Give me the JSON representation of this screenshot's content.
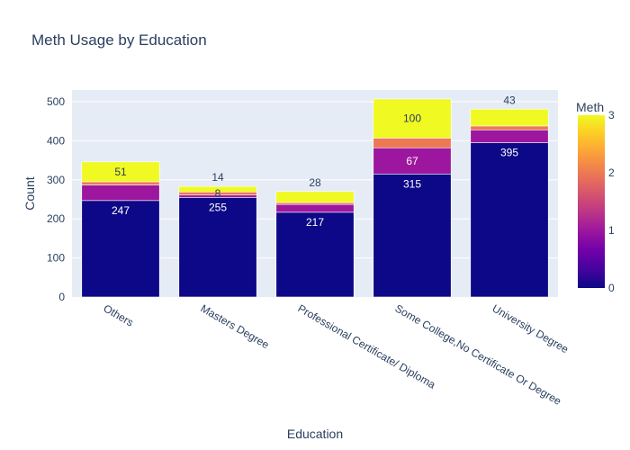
{
  "chart_data": {
    "type": "bar",
    "title": "Meth Usage by Education",
    "xlabel": "Education",
    "ylabel": "Count",
    "categories": [
      "Others",
      "Masters Degree",
      "Professional Certificate/ Diploma",
      "Some College,No Certificate Or Degree",
      "University Degree"
    ],
    "ylim": [
      0,
      530
    ],
    "yticks": [
      0,
      100,
      200,
      300,
      400,
      500
    ],
    "stacked": true,
    "grid": true,
    "series": [
      {
        "meth": 0,
        "color": "#0d0887",
        "values": [
          247,
          255,
          217,
          315,
          395
        ],
        "labels": [
          "247",
          "255",
          "217",
          "315",
          "395"
        ],
        "label_color": "#ffffff"
      },
      {
        "meth": 1,
        "color": "#9c179e",
        "values": [
          40,
          6,
          20,
          67,
          33
        ],
        "labels": [
          "",
          "",
          "",
          "67",
          ""
        ],
        "label_color": "#ffffff"
      },
      {
        "meth": 2,
        "color": "#ed7953",
        "values": [
          8,
          8,
          5,
          25,
          10
        ],
        "labels": [
          "",
          "8",
          "",
          "",
          ""
        ],
        "label_color": "#2a3f5f"
      },
      {
        "meth": 3,
        "color": "#f0f921",
        "values": [
          51,
          14,
          28,
          100,
          43
        ],
        "labels": [
          "51",
          "14",
          "28",
          "100",
          "43"
        ],
        "label_color": "#2a3f5f"
      }
    ],
    "colorbar": {
      "title": "Meth",
      "min": 0,
      "max": 3,
      "ticks": [
        "0",
        "1",
        "2",
        "3"
      ],
      "stops": [
        "#0d0887",
        "#46039f",
        "#7201a8",
        "#9c179e",
        "#bd3786",
        "#d8576b",
        "#ed7953",
        "#fb9f3a",
        "#fdca26",
        "#f0f921"
      ]
    }
  }
}
